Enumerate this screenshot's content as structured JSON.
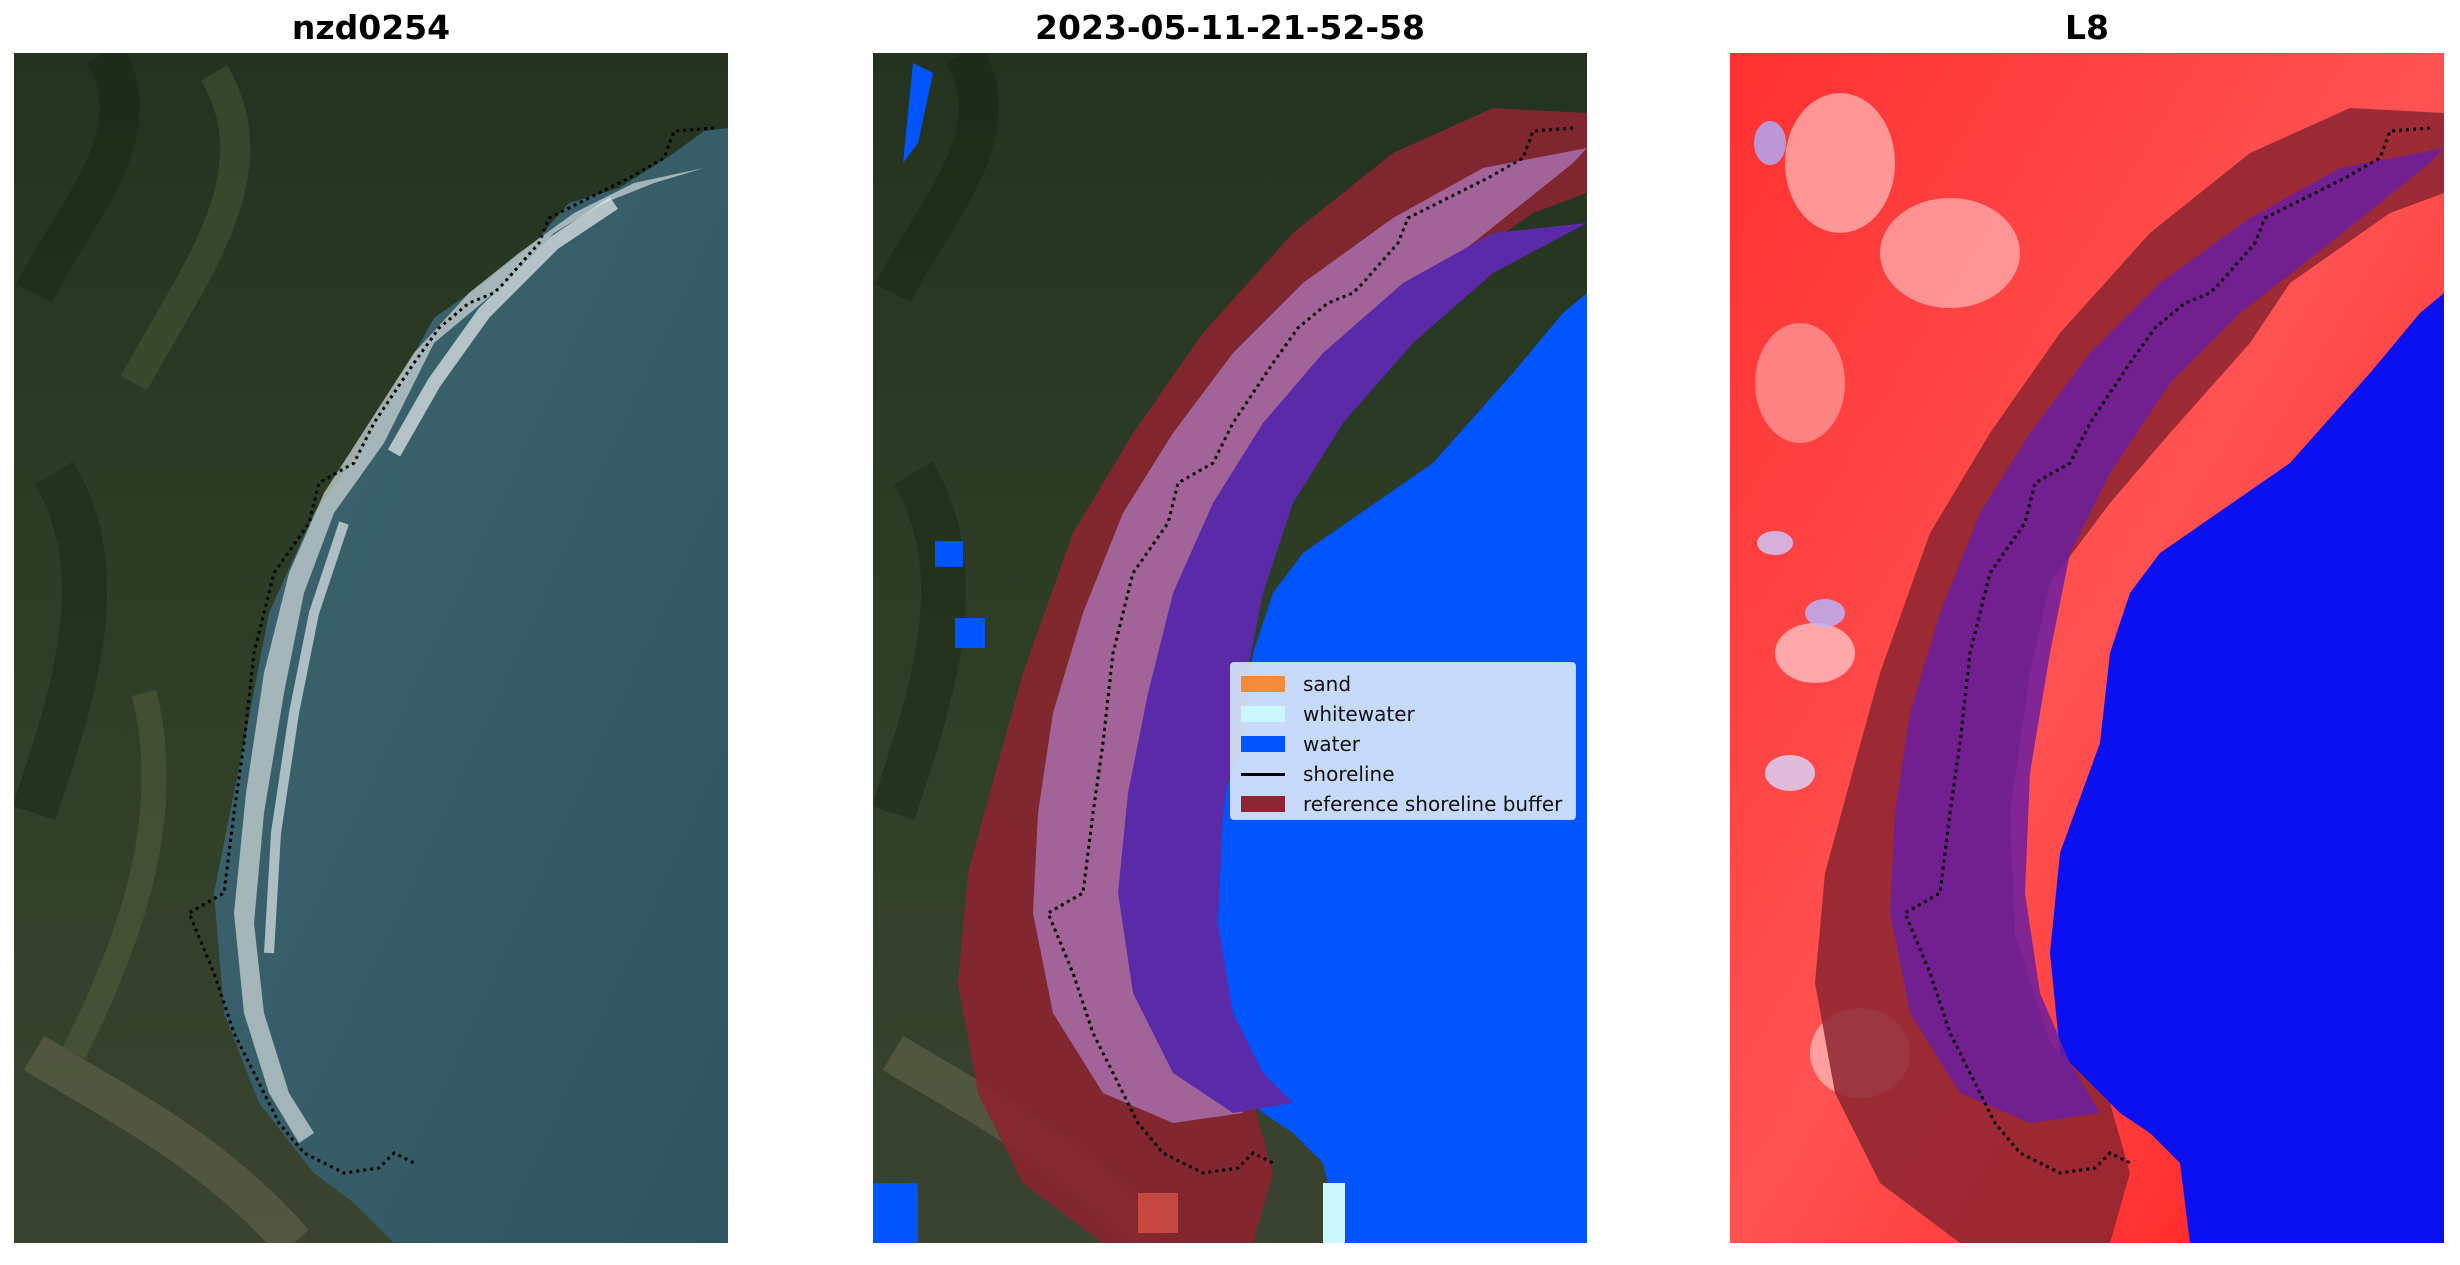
{
  "panels": [
    {
      "title": "nzd0254"
    },
    {
      "title": "2023-05-11-21-52-58"
    },
    {
      "title": "L8"
    }
  ],
  "legend": {
    "items": [
      {
        "label": "sand",
        "color": "#f58b3a",
        "kind": "patch"
      },
      {
        "label": "whitewater",
        "color": "#ccf7ff",
        "kind": "patch"
      },
      {
        "label": "water",
        "color": "#0055ff",
        "kind": "patch"
      },
      {
        "label": "shoreline",
        "color": "#000000",
        "kind": "line"
      },
      {
        "label": "reference shoreline buffer",
        "color": "#8b2530",
        "kind": "patch"
      }
    ]
  },
  "colors": {
    "land_dark": "#27361f",
    "ocean": "#355a66",
    "water_class": "#0055ff",
    "buffer": "#8b2530",
    "sand_overlay": "#a26498",
    "index_positive": "#ff1a1a",
    "index_negative": "#0000ff"
  }
}
